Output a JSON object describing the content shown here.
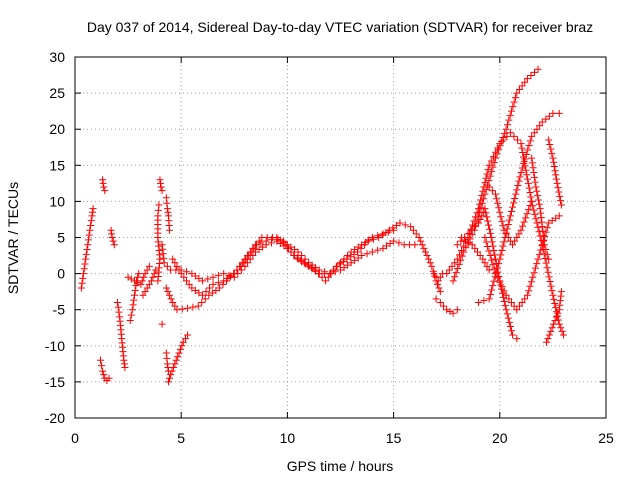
{
  "chart_data": {
    "type": "scatter",
    "title": "Day 037 of 2014, Sidereal Day-to-day VTEC variation (SDTVAR) for receiver braz",
    "xlabel": "GPS time / hours",
    "ylabel": "SDTVAR / TECUs",
    "xlim": [
      0,
      25
    ],
    "ylim": [
      -20,
      30
    ],
    "xticks": [
      0,
      5,
      10,
      15,
      20,
      25
    ],
    "yticks": [
      -20,
      -15,
      -10,
      -5,
      0,
      5,
      10,
      15,
      20,
      25,
      30
    ],
    "xtick_labels": [
      "0",
      "5",
      "10",
      "15",
      "20",
      "25"
    ],
    "ytick_labels": [
      "-20",
      "-15",
      "-10",
      "-5",
      "0",
      "5",
      "10",
      "15",
      "20",
      "25",
      "30"
    ],
    "grid": true,
    "marker": "+",
    "color": "#ff0000",
    "series": [
      {
        "name": "t1",
        "points": [
          [
            0.3,
            -2
          ],
          [
            0.4,
            0
          ],
          [
            0.5,
            2
          ],
          [
            0.6,
            4
          ],
          [
            0.7,
            6
          ],
          [
            0.8,
            8
          ],
          [
            0.85,
            9
          ]
        ]
      },
      {
        "name": "t2",
        "points": [
          [
            1.2,
            -12
          ],
          [
            1.3,
            -13.5
          ],
          [
            1.4,
            -14.5
          ],
          [
            1.5,
            -14.8
          ],
          [
            1.6,
            -14.5
          ]
        ]
      },
      {
        "name": "t3",
        "points": [
          [
            1.3,
            13
          ],
          [
            1.35,
            12
          ],
          [
            1.4,
            11.5
          ]
        ]
      },
      {
        "name": "t4",
        "points": [
          [
            1.7,
            6
          ],
          [
            1.75,
            5
          ],
          [
            1.8,
            4.5
          ],
          [
            1.85,
            4
          ]
        ]
      },
      {
        "name": "t5",
        "points": [
          [
            2.0,
            -4
          ],
          [
            2.1,
            -6
          ],
          [
            2.2,
            -9
          ],
          [
            2.3,
            -12
          ],
          [
            2.35,
            -13
          ]
        ]
      },
      {
        "name": "t6",
        "points": [
          [
            2.6,
            -6.5
          ],
          [
            2.7,
            -5
          ],
          [
            2.8,
            -3
          ],
          [
            2.9,
            -1
          ],
          [
            3.0,
            0
          ]
        ]
      },
      {
        "name": "t7",
        "points": [
          [
            2.5,
            -0.5
          ],
          [
            2.8,
            -1
          ],
          [
            3.1,
            -1.5
          ],
          [
            3.3,
            0
          ],
          [
            3.5,
            1
          ]
        ]
      },
      {
        "name": "t8",
        "points": [
          [
            3.2,
            -3
          ],
          [
            3.4,
            -2
          ],
          [
            3.6,
            -1
          ],
          [
            3.8,
            0.5
          ]
        ]
      },
      {
        "name": "t9",
        "points": [
          [
            3.9,
            -1
          ],
          [
            4.0,
            2
          ],
          [
            3.9,
            5
          ],
          [
            3.9,
            8
          ],
          [
            3.95,
            9.5
          ]
        ]
      },
      {
        "name": "t10",
        "points": [
          [
            4.0,
            13
          ],
          [
            4.05,
            12
          ],
          [
            4.1,
            11.5
          ]
        ]
      },
      {
        "name": "t11",
        "points": [
          [
            4.1,
            -7
          ]
        ]
      },
      {
        "name": "t12",
        "points": [
          [
            4.3,
            10.5
          ],
          [
            4.35,
            9
          ],
          [
            4.4,
            8
          ],
          [
            4.45,
            6
          ]
        ]
      },
      {
        "name": "t13",
        "points": [
          [
            4.1,
            4
          ],
          [
            4.2,
            1.5
          ],
          [
            4.5,
            0.5
          ],
          [
            5.0,
            0.5
          ],
          [
            5.5,
            0
          ],
          [
            6.0,
            -1
          ],
          [
            6.5,
            -0.5
          ],
          [
            7.0,
            0
          ],
          [
            7.5,
            -0.5
          ],
          [
            8.0,
            1
          ],
          [
            8.5,
            3
          ],
          [
            9.0,
            4
          ],
          [
            9.5,
            4.5
          ],
          [
            10.0,
            3.5
          ],
          [
            10.5,
            2
          ],
          [
            11.0,
            1
          ],
          [
            11.5,
            0
          ],
          [
            12.0,
            0
          ],
          [
            12.5,
            0.5
          ],
          [
            13.0,
            1.5
          ],
          [
            13.5,
            2.5
          ],
          [
            14.0,
            3
          ],
          [
            14.5,
            3.5
          ],
          [
            15.0,
            4.5
          ],
          [
            15.5,
            4
          ],
          [
            16.0,
            4
          ]
        ]
      },
      {
        "name": "t14",
        "points": [
          [
            4.3,
            -2
          ],
          [
            4.6,
            -4
          ],
          [
            4.8,
            -5
          ],
          [
            5.3,
            -4.8
          ],
          [
            5.8,
            -4.5
          ],
          [
            6.3,
            -3
          ],
          [
            6.8,
            -2
          ],
          [
            7.3,
            -0.5
          ],
          [
            7.8,
            1
          ],
          [
            8.3,
            3
          ],
          [
            8.8,
            5
          ],
          [
            9.3,
            5
          ],
          [
            9.8,
            4.5
          ],
          [
            10.3,
            2.5
          ],
          [
            10.8,
            1.5
          ],
          [
            11.3,
            0.5
          ],
          [
            11.8,
            -1
          ],
          [
            12.3,
            1
          ],
          [
            12.8,
            2
          ],
          [
            13.3,
            3
          ],
          [
            13.8,
            4.5
          ],
          [
            14.3,
            5
          ],
          [
            14.8,
            6
          ],
          [
            15.3,
            7
          ],
          [
            15.8,
            6.5
          ],
          [
            16.2,
            5
          ]
        ]
      },
      {
        "name": "t15",
        "points": [
          [
            4.6,
            2
          ],
          [
            5.0,
            0
          ],
          [
            5.5,
            -2
          ],
          [
            6.0,
            -3
          ],
          [
            6.5,
            -1.5
          ],
          [
            7.0,
            -1
          ],
          [
            7.5,
            0
          ],
          [
            8.0,
            2
          ],
          [
            8.5,
            4
          ],
          [
            9.0,
            4.5
          ],
          [
            9.5,
            5
          ],
          [
            10.0,
            4
          ],
          [
            10.5,
            3
          ],
          [
            11.0,
            1.5
          ],
          [
            11.5,
            0.5
          ],
          [
            12.0,
            0
          ],
          [
            12.5,
            1.5
          ],
          [
            13.0,
            3
          ],
          [
            13.5,
            4
          ],
          [
            14.0,
            5
          ],
          [
            14.5,
            5.5
          ],
          [
            15.0,
            6
          ]
        ]
      },
      {
        "name": "t16",
        "points": [
          [
            4.4,
            -15
          ],
          [
            4.5,
            -14
          ],
          [
            4.7,
            -12.5
          ],
          [
            4.9,
            -11
          ],
          [
            5.1,
            -9.5
          ],
          [
            5.3,
            -8.5
          ]
        ]
      },
      {
        "name": "t17",
        "points": [
          [
            4.3,
            -11
          ],
          [
            4.35,
            -12.5
          ],
          [
            4.4,
            -13.5
          ]
        ]
      },
      {
        "name": "t18",
        "points": [
          [
            16.2,
            5
          ],
          [
            16.5,
            3
          ],
          [
            16.8,
            1
          ],
          [
            17.0,
            -1
          ],
          [
            17.2,
            -2.5
          ]
        ]
      },
      {
        "name": "t19",
        "points": [
          [
            16.9,
            0
          ],
          [
            17.1,
            -1
          ],
          [
            17.3,
            0
          ]
        ]
      },
      {
        "name": "t20",
        "points": [
          [
            17.0,
            -3.5
          ],
          [
            17.2,
            -4
          ],
          [
            17.5,
            -5
          ],
          [
            17.8,
            -5.5
          ],
          [
            18.0,
            -5
          ]
        ]
      },
      {
        "name": "t21",
        "points": [
          [
            17.5,
            0
          ],
          [
            18.0,
            2
          ],
          [
            18.5,
            5
          ],
          [
            19.0,
            9
          ],
          [
            19.5,
            15
          ],
          [
            20.0,
            18
          ],
          [
            20.5,
            19.5
          ],
          [
            21.0,
            18
          ],
          [
            21.5,
            10
          ],
          [
            22.0,
            4
          ],
          [
            22.5,
            -3
          ],
          [
            22.8,
            -7
          ],
          [
            23.0,
            -8.5
          ]
        ]
      },
      {
        "name": "t22",
        "points": [
          [
            17.8,
            -1
          ],
          [
            18.3,
            3
          ],
          [
            18.8,
            6
          ],
          [
            19.3,
            11
          ],
          [
            19.8,
            16
          ],
          [
            20.3,
            20
          ],
          [
            20.8,
            25
          ],
          [
            21.3,
            27
          ],
          [
            21.8,
            28.3
          ]
        ]
      },
      {
        "name": "t23",
        "points": [
          [
            18.0,
            4
          ],
          [
            18.5,
            5.5
          ],
          [
            19.0,
            7
          ],
          [
            19.3,
            9
          ],
          [
            19.6,
            5
          ],
          [
            20.0,
            -1
          ],
          [
            20.3,
            -5
          ],
          [
            20.6,
            -8.5
          ],
          [
            20.8,
            -9
          ]
        ]
      },
      {
        "name": "t24",
        "points": [
          [
            18.2,
            5
          ],
          [
            18.7,
            4
          ],
          [
            19.2,
            2
          ],
          [
            19.5,
            0.5
          ]
        ]
      },
      {
        "name": "t25",
        "points": [
          [
            19.3,
            5
          ],
          [
            19.8,
            0
          ],
          [
            20.3,
            -3
          ],
          [
            20.8,
            -5
          ],
          [
            21.3,
            -3
          ],
          [
            21.8,
            2
          ],
          [
            22.3,
            7
          ],
          [
            22.8,
            8
          ]
        ]
      },
      {
        "name": "t26",
        "points": [
          [
            19.0,
            -4
          ],
          [
            19.5,
            -3.5
          ],
          [
            20.0,
            2
          ],
          [
            20.5,
            8
          ],
          [
            21.0,
            14
          ],
          [
            21.5,
            19
          ],
          [
            22.0,
            21
          ],
          [
            22.5,
            22.2
          ],
          [
            22.8,
            22.2
          ]
        ]
      },
      {
        "name": "t27",
        "points": [
          [
            19.5,
            12
          ],
          [
            19.8,
            11
          ],
          [
            20.2,
            6
          ],
          [
            20.6,
            4
          ],
          [
            21.0,
            6
          ],
          [
            21.5,
            10
          ]
        ]
      },
      {
        "name": "t28",
        "points": [
          [
            21.5,
            16
          ],
          [
            21.7,
            12
          ],
          [
            21.9,
            9
          ],
          [
            22.1,
            4
          ],
          [
            22.3,
            2
          ]
        ]
      },
      {
        "name": "t29",
        "points": [
          [
            22.3,
            18.5
          ],
          [
            22.5,
            16
          ],
          [
            22.7,
            12.5
          ],
          [
            22.9,
            9.5
          ]
        ]
      },
      {
        "name": "t30",
        "points": [
          [
            22.2,
            -9.5
          ],
          [
            22.4,
            -8
          ],
          [
            22.6,
            -6.5
          ],
          [
            22.8,
            -5
          ],
          [
            22.9,
            -2.5
          ]
        ]
      }
    ]
  }
}
